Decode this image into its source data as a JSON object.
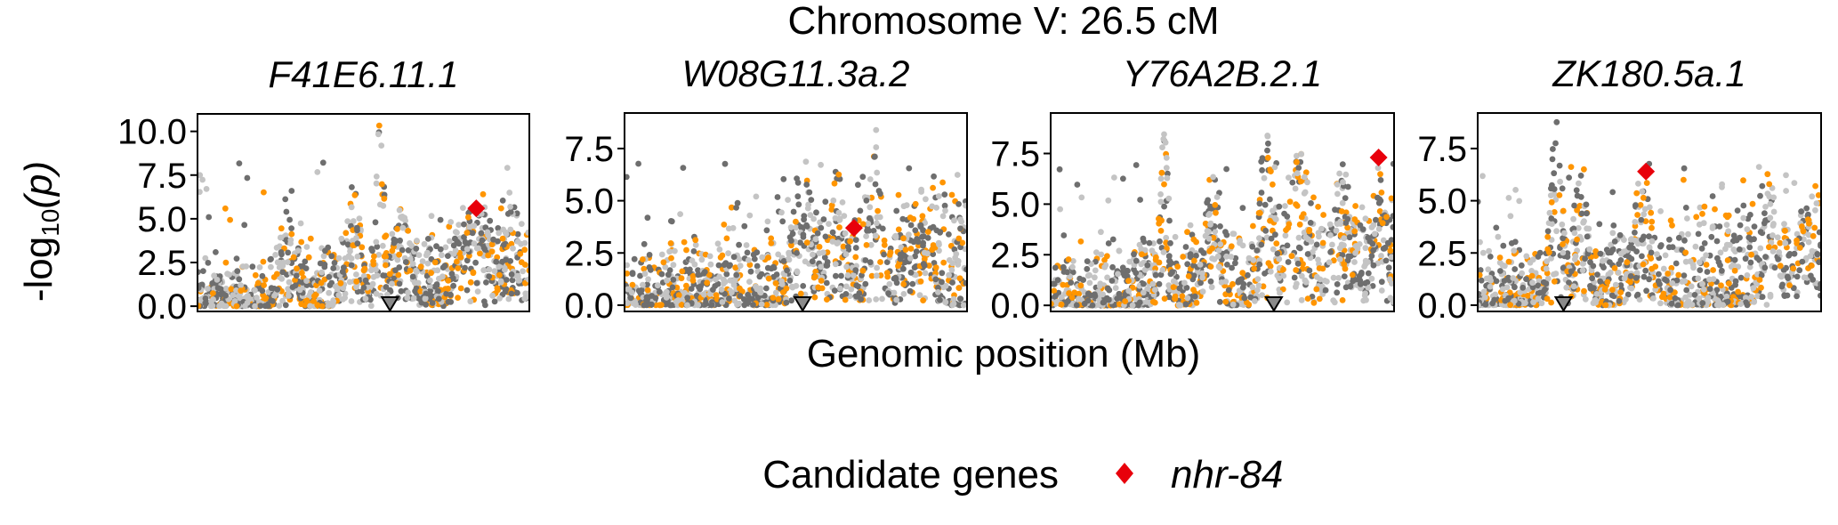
{
  "figure": {
    "title": "Chromosome V: 26.5 cM",
    "xlabel": "Genomic position (Mb)",
    "ylabel_main": "-log",
    "ylabel_sub": "10",
    "ylabel_arg": "(p)",
    "legend": {
      "title": "Candidate genes",
      "entries": [
        {
          "label": "nhr-84",
          "color": "#e8000b",
          "shape": "diamond"
        }
      ]
    },
    "colors": {
      "orange": "#ff9500",
      "dark_gray": "#6e6e6e",
      "light_gray": "#c4c4c4",
      "candidate": "#e8000b"
    }
  },
  "chart_data": [
    {
      "type": "scatter",
      "title": "F41E6.11.1",
      "ylim": [
        -0.3,
        11.0
      ],
      "yticks": [
        0.0,
        2.5,
        5.0,
        7.5,
        10.0
      ],
      "ytick_labels": [
        "0.0",
        "2.5",
        "5.0",
        "7.5",
        "10.0"
      ],
      "x_range": [
        0,
        1
      ],
      "marker_x": 0.58,
      "candidate": {
        "gene": "nhr-84",
        "x": 0.84,
        "y": 5.6
      },
      "peaks": [
        {
          "x": 0.27,
          "h": 6.5,
          "w": 0.02
        },
        {
          "x": 0.47,
          "h": 7.0,
          "w": 0.025
        },
        {
          "x": 0.55,
          "h": 10.5,
          "w": 0.015
        },
        {
          "x": 0.62,
          "h": 6.0,
          "w": 0.03
        },
        {
          "x": 0.84,
          "h": 6.5,
          "w": 0.05
        },
        {
          "x": 0.95,
          "h": 6.0,
          "w": 0.03
        }
      ]
    },
    {
      "type": "scatter",
      "title": "W08G11.3a.2",
      "ylim": [
        -0.3,
        9.2
      ],
      "yticks": [
        0.0,
        2.5,
        5.0,
        7.5
      ],
      "ytick_labels": [
        "0.0",
        "2.5",
        "5.0",
        "7.5"
      ],
      "x_range": [
        0,
        1
      ],
      "marker_x": 0.52,
      "candidate": {
        "gene": "nhr-84",
        "x": 0.67,
        "y": 3.7
      },
      "peaks": [
        {
          "x": 0.52,
          "h": 7.5,
          "w": 0.03
        },
        {
          "x": 0.62,
          "h": 6.5,
          "w": 0.03
        },
        {
          "x": 0.73,
          "h": 8.8,
          "w": 0.02
        },
        {
          "x": 0.85,
          "h": 5.0,
          "w": 0.04
        }
      ]
    },
    {
      "type": "scatter",
      "title": "Y76A2B.2.1",
      "ylim": [
        -0.3,
        9.5
      ],
      "yticks": [
        0.0,
        2.5,
        5.0,
        7.5
      ],
      "ytick_labels": [
        "0.0",
        "2.5",
        "5.0",
        "7.5"
      ],
      "x_range": [
        0,
        1
      ],
      "marker_x": 0.65,
      "candidate": {
        "gene": "nhr-84",
        "x": 0.955,
        "y": 7.3
      },
      "peaks": [
        {
          "x": 0.33,
          "h": 8.5,
          "w": 0.015
        },
        {
          "x": 0.47,
          "h": 7.0,
          "w": 0.02
        },
        {
          "x": 0.63,
          "h": 9.2,
          "w": 0.02
        },
        {
          "x": 0.72,
          "h": 8.0,
          "w": 0.04
        },
        {
          "x": 0.85,
          "h": 7.0,
          "w": 0.03
        },
        {
          "x": 0.96,
          "h": 7.5,
          "w": 0.02
        }
      ]
    },
    {
      "type": "scatter",
      "title": "ZK180.5a.1",
      "ylim": [
        -0.3,
        9.2
      ],
      "yticks": [
        0.0,
        2.5,
        5.0,
        7.5
      ],
      "ytick_labels": [
        "0.0",
        "2.5",
        "5.0",
        "7.5"
      ],
      "x_range": [
        0,
        1
      ],
      "marker_x": 0.25,
      "candidate": {
        "gene": "nhr-84",
        "x": 0.49,
        "y": 6.4
      },
      "peaks": [
        {
          "x": 0.23,
          "h": 8.8,
          "w": 0.02
        },
        {
          "x": 0.3,
          "h": 7.5,
          "w": 0.02
        },
        {
          "x": 0.48,
          "h": 6.5,
          "w": 0.03
        },
        {
          "x": 0.85,
          "h": 7.0,
          "w": 0.02
        },
        {
          "x": 0.95,
          "h": 5.0,
          "w": 0.03
        }
      ]
    }
  ]
}
